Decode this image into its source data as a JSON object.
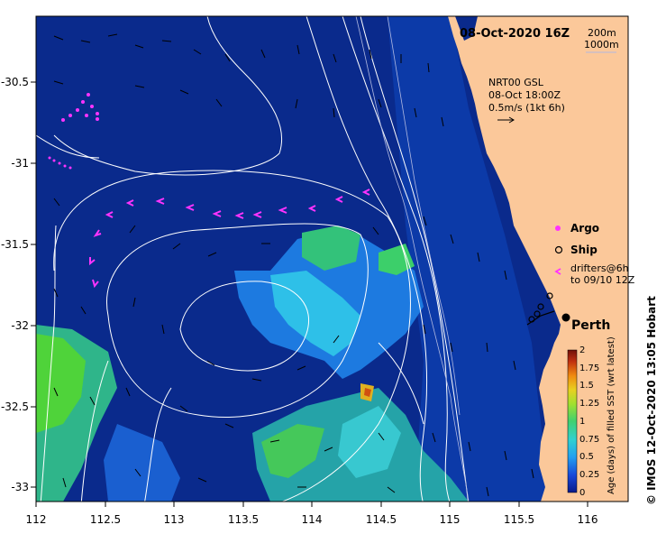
{
  "map": {
    "date_label": "08-Oct-2020 16Z",
    "depth_contours": [
      "200m",
      "1000m"
    ],
    "current_source": "NRT00 GSL",
    "current_time": "08-Oct 18:00Z",
    "current_scale": "0.5m/s (1kt 6h)",
    "lon_ticks": [
      "112",
      "112.5",
      "113",
      "113.5",
      "114",
      "114.5",
      "115",
      "115.5",
      "116"
    ],
    "lat_ticks": [
      "-30.5",
      "-31",
      "-31.5",
      "-32",
      "-32.5",
      "-33"
    ],
    "place_label": "Perth",
    "credit": "© IMOS 12-Oct-2020 13:05 Hobart",
    "colors": {
      "ocean": "#0a2a8c",
      "land": "#fbc89a",
      "contour": "#ffffff",
      "argo": "#ff33ff",
      "drifter": "#ff33ff"
    }
  },
  "legend": {
    "argo": "Argo",
    "ship": "Ship",
    "drifters_line1": "drifters@6h",
    "drifters_line2": "to 09/10 12Z"
  },
  "colorbar": {
    "title": "Age (days) of filled SST (wrt latest)",
    "ticks": [
      "0",
      "0.25",
      "0.5",
      "0.75",
      "1",
      "1.25",
      "1.5",
      "1.75",
      "2"
    ]
  }
}
